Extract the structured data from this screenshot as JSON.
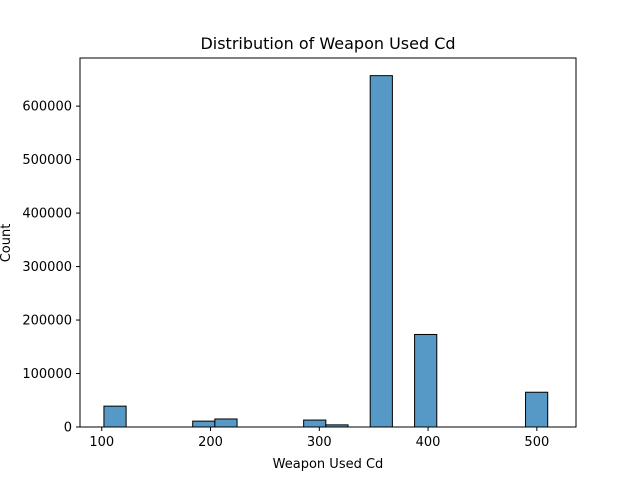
{
  "colors": {
    "bar_fill": "#5799c6",
    "bar_edge": "#000000",
    "axis": "#000000",
    "background": "#ffffff"
  },
  "chart_data": {
    "type": "bar",
    "title": "Distribution of Weapon Used Cd",
    "xlabel": "Weapon Used Cd",
    "ylabel": "Count",
    "xlim": [
      80,
      536
    ],
    "ylim": [
      0,
      690000
    ],
    "grid": false,
    "legend": "none",
    "bin_width": 20.4,
    "bins": [
      {
        "x0": 102,
        "x1": 122.4,
        "count": 39000
      },
      {
        "x0": 183.6,
        "x1": 204,
        "count": 11000
      },
      {
        "x0": 204,
        "x1": 224.4,
        "count": 15000
      },
      {
        "x0": 285.6,
        "x1": 306,
        "count": 13000
      },
      {
        "x0": 306,
        "x1": 326.4,
        "count": 4000
      },
      {
        "x0": 346.8,
        "x1": 367.2,
        "count": 657000
      },
      {
        "x0": 387.6,
        "x1": 408,
        "count": 173000
      },
      {
        "x0": 489.6,
        "x1": 510,
        "count": 65000
      }
    ],
    "x_ticks": [
      100,
      200,
      300,
      400,
      500
    ],
    "y_ticks": [
      0,
      100000,
      200000,
      300000,
      400000,
      500000,
      600000
    ]
  }
}
